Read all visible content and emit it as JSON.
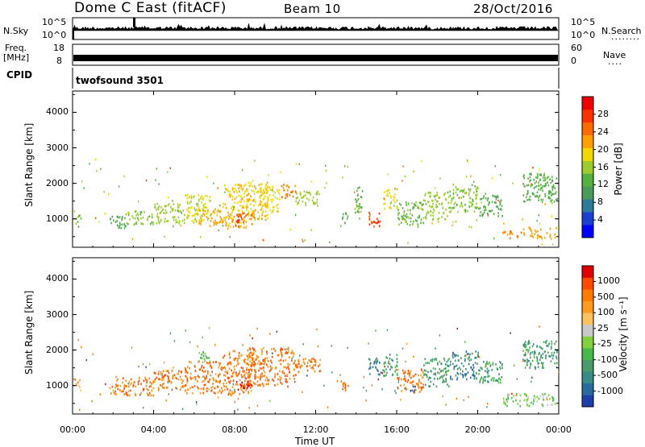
{
  "header": {
    "station": "Dome C East (fitACF)",
    "beam": "Beam 10",
    "date": "28/Oct/2016"
  },
  "top_panels": {
    "nsky_label": "N.Sky",
    "nsky_ticks": [
      "10^5",
      "10^0"
    ],
    "nsearch_label": "N.Search",
    "nsearch_ticks": [
      "10^5",
      "10^0"
    ],
    "freq_label": "Freq.",
    "freq_unit": "[MHz]",
    "freq_ticks": [
      "18",
      "8"
    ],
    "nave_label": "Nave",
    "nave_ticks": [
      "60",
      "0"
    ],
    "cpid_label": "CPID",
    "cpid_value": "twofsound 3501"
  },
  "chart_data": [
    {
      "type": "heatmap",
      "title": "",
      "xlabel": "",
      "ylabel": "Slant Range [km]",
      "xlim": [
        0,
        24
      ],
      "ylim": [
        200,
        4600
      ],
      "x_ticks": [
        0,
        4,
        8,
        12,
        16,
        20,
        24
      ],
      "y_ticks": [
        "1000",
        "2000",
        "3000",
        "4000"
      ],
      "colorbar_label": "Power [dB]",
      "colorbar_ticks": [
        "28",
        "24",
        "20",
        "16",
        "12",
        "8",
        "4"
      ],
      "colorbar_colors": [
        "#0000ff",
        "#1a3fd1",
        "#2e7a99",
        "#4a9a5c",
        "#55b040",
        "#9ccc2c",
        "#f0d800",
        "#ffa000",
        "#ff6a00",
        "#ff3000",
        "#ee0000"
      ],
      "colorbar_range": [
        0,
        32
      ],
      "echo_regions": [
        {
          "t0": 0.1,
          "t1": 0.4,
          "r0": 800,
          "r1": 1200,
          "v": 14
        },
        {
          "t0": 1.8,
          "t1": 2.6,
          "r0": 750,
          "r1": 1100,
          "v": 12
        },
        {
          "t0": 2.6,
          "t1": 4.0,
          "r0": 850,
          "r1": 1250,
          "v": 15
        },
        {
          "t0": 4.0,
          "t1": 5.5,
          "r0": 900,
          "r1": 1450,
          "v": 16
        },
        {
          "t0": 5.5,
          "t1": 6.8,
          "r0": 950,
          "r1": 1700,
          "v": 18
        },
        {
          "t0": 6.2,
          "t1": 7.4,
          "r0": 800,
          "r1": 1300,
          "v": 21
        },
        {
          "t0": 7.4,
          "t1": 8.6,
          "r0": 750,
          "r1": 2000,
          "v": 20
        },
        {
          "t0": 8.0,
          "t1": 9.0,
          "r0": 800,
          "r1": 1200,
          "v": 26
        },
        {
          "t0": 8.6,
          "t1": 9.6,
          "r0": 1000,
          "r1": 2100,
          "v": 20
        },
        {
          "t0": 9.2,
          "t1": 10.2,
          "r0": 1200,
          "r1": 2000,
          "v": 19
        },
        {
          "t0": 10.2,
          "t1": 11.0,
          "r0": 1600,
          "r1": 2000,
          "v": 24
        },
        {
          "t0": 11.0,
          "t1": 12.2,
          "r0": 1400,
          "r1": 1800,
          "v": 16
        },
        {
          "t0": 13.2,
          "t1": 13.6,
          "r0": 850,
          "r1": 1200,
          "v": 12
        },
        {
          "t0": 13.9,
          "t1": 14.3,
          "r0": 1200,
          "r1": 2000,
          "v": 14
        },
        {
          "t0": 14.6,
          "t1": 15.2,
          "r0": 800,
          "r1": 1200,
          "v": 27
        },
        {
          "t0": 15.3,
          "t1": 16.0,
          "r0": 1300,
          "r1": 1900,
          "v": 18
        },
        {
          "t0": 16.0,
          "t1": 17.3,
          "r0": 850,
          "r1": 1500,
          "v": 14
        },
        {
          "t0": 17.3,
          "t1": 18.6,
          "r0": 1000,
          "r1": 1800,
          "v": 16
        },
        {
          "t0": 18.6,
          "t1": 20.0,
          "r0": 1200,
          "r1": 2000,
          "v": 15
        },
        {
          "t0": 20.0,
          "t1": 21.2,
          "r0": 1100,
          "r1": 1700,
          "v": 12
        },
        {
          "t0": 21.2,
          "t1": 22.2,
          "r0": 450,
          "r1": 700,
          "v": 23
        },
        {
          "t0": 22.2,
          "t1": 23.9,
          "r0": 450,
          "r1": 800,
          "v": 22
        },
        {
          "t0": 22.2,
          "t1": 23.9,
          "r0": 1500,
          "r1": 2300,
          "v": 13
        }
      ]
    },
    {
      "type": "heatmap",
      "title": "",
      "xlabel": "Time UT",
      "ylabel": "Slant Range [km]",
      "xlim": [
        0,
        24
      ],
      "ylim": [
        200,
        4600
      ],
      "x_ticks": [
        0,
        4,
        8,
        12,
        16,
        20,
        24
      ],
      "x_tick_labels": [
        "00:00",
        "04:00",
        "08:00",
        "12:00",
        "16:00",
        "20:00",
        "00:00"
      ],
      "y_ticks": [
        "1000",
        "2000",
        "3000",
        "4000"
      ],
      "colorbar_label": "Velocity [m s⁻¹]",
      "colorbar_ticks": [
        "1000",
        "500",
        "100",
        "25",
        "-25",
        "-100",
        "-500",
        "-1000"
      ],
      "colorbar_colors": [
        "#1f3fa8",
        "#2a6a9c",
        "#3a8a86",
        "#4a9a6a",
        "#48b84a",
        "#80d040",
        "#c8c8c8",
        "#ffc060",
        "#ff9a20",
        "#ff7a00",
        "#ff4a00",
        "#e00000"
      ],
      "echo_regions": [
        {
          "t0": 0.1,
          "t1": 0.4,
          "r0": 800,
          "r1": 1200,
          "v": 8
        },
        {
          "t0": 1.8,
          "t1": 4.0,
          "r0": 750,
          "r1": 1250,
          "v": 9
        },
        {
          "t0": 4.0,
          "t1": 5.5,
          "r0": 900,
          "r1": 1450,
          "v": 9
        },
        {
          "t0": 5.5,
          "t1": 7.4,
          "r0": 800,
          "r1": 1700,
          "v": 9
        },
        {
          "t0": 6.2,
          "t1": 6.8,
          "r0": 1700,
          "r1": 2000,
          "v": 4
        },
        {
          "t0": 7.4,
          "t1": 9.0,
          "r0": 750,
          "r1": 2000,
          "v": 9
        },
        {
          "t0": 8.0,
          "t1": 8.8,
          "r0": 900,
          "r1": 1200,
          "v": 11
        },
        {
          "t0": 8.6,
          "t1": 11.0,
          "r0": 1000,
          "r1": 2100,
          "v": 9
        },
        {
          "t0": 11.0,
          "t1": 12.2,
          "r0": 1400,
          "r1": 1800,
          "v": 9
        },
        {
          "t0": 13.2,
          "t1": 13.6,
          "r0": 850,
          "r1": 1200,
          "v": 9
        },
        {
          "t0": 14.6,
          "t1": 15.2,
          "r0": 1300,
          "r1": 1800,
          "v": 2
        },
        {
          "t0": 15.3,
          "t1": 16.0,
          "r0": 1300,
          "r1": 1900,
          "v": 3
        },
        {
          "t0": 16.0,
          "t1": 17.3,
          "r0": 850,
          "r1": 1500,
          "v": 9
        },
        {
          "t0": 16.6,
          "t1": 17.0,
          "r0": 800,
          "r1": 1000,
          "v": 0
        },
        {
          "t0": 17.3,
          "t1": 18.6,
          "r0": 1000,
          "r1": 1800,
          "v": 3
        },
        {
          "t0": 18.6,
          "t1": 20.0,
          "r0": 1200,
          "r1": 2000,
          "v": 2
        },
        {
          "t0": 20.0,
          "t1": 21.2,
          "r0": 1100,
          "r1": 1700,
          "v": 3
        },
        {
          "t0": 21.2,
          "t1": 23.9,
          "r0": 450,
          "r1": 800,
          "v": 5
        },
        {
          "t0": 22.2,
          "t1": 23.9,
          "r0": 1500,
          "r1": 2300,
          "v": 3
        }
      ]
    }
  ]
}
